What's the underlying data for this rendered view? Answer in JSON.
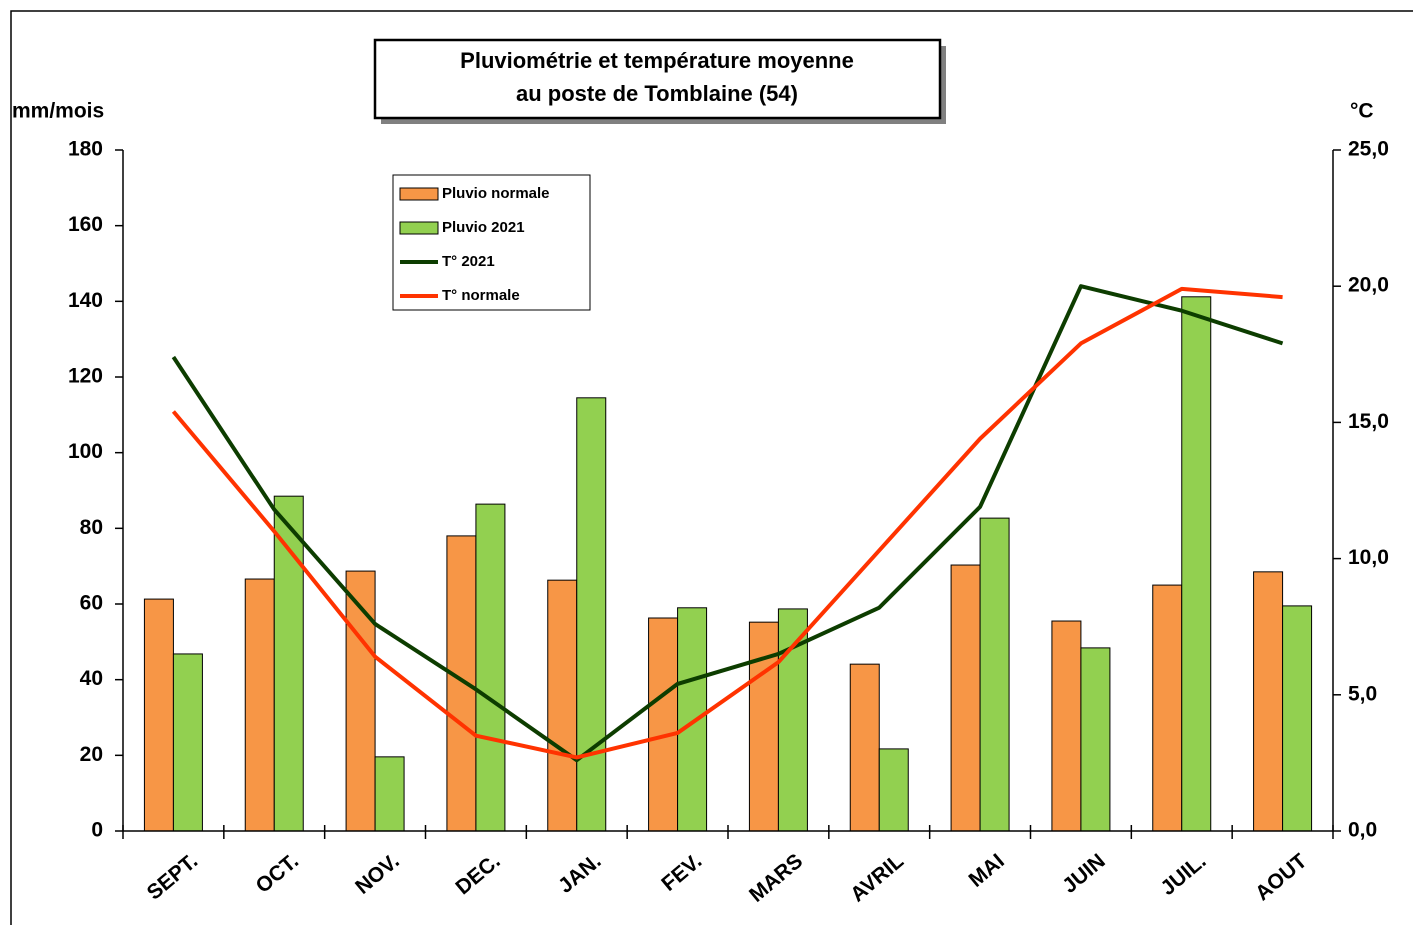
{
  "chart_data": {
    "type": "bar_line",
    "title": [
      "Pluviométrie et température moyenne",
      "au poste de Tomblaine (54)"
    ],
    "y_label": "mm/mois",
    "y2_label": "°C",
    "categories": [
      "SEPT.",
      "OCT.",
      "NOV.",
      "DEC.",
      "JAN.",
      "FEV.",
      "MARS",
      "AVRIL",
      "MAI",
      "JUIN",
      "JUIL.",
      "AOUT"
    ],
    "series": [
      {
        "name": "Pluvio normale",
        "kind": "bar",
        "color": "#f79646",
        "values": [
          61.3,
          66.6,
          68.7,
          78,
          66.3,
          56.3,
          55.2,
          44.1,
          70.3,
          55.5,
          65,
          68.5
        ]
      },
      {
        "name": "Pluvio 2021",
        "kind": "bar",
        "color": "#92d050",
        "values": [
          46.8,
          88.5,
          19.6,
          86.4,
          114.5,
          59,
          58.7,
          21.7,
          82.7,
          48.4,
          141.2,
          59.5
        ]
      },
      {
        "name": "T° 2021",
        "kind": "line",
        "axis": "y2",
        "color": "#0d3d00",
        "values": [
          17.4,
          11.8,
          7.6,
          5.2,
          2.6,
          5.4,
          6.5,
          8.2,
          11.9,
          20.0,
          19.1,
          17.9
        ]
      },
      {
        "name": "T° normale",
        "kind": "line",
        "axis": "y2",
        "color": "#ff3300",
        "values": [
          15.4,
          11.0,
          6.4,
          3.5,
          2.7,
          3.6,
          6.2,
          10.3,
          14.4,
          17.9,
          19.9,
          19.6
        ]
      }
    ],
    "ylim": [
      0,
      180
    ],
    "yticks": [
      0,
      20,
      40,
      60,
      80,
      100,
      120,
      140,
      160,
      180
    ],
    "y2lim": [
      0,
      25
    ],
    "y2ticks": [
      {
        "value": 0,
        "label": "0,0"
      },
      {
        "value": 5,
        "label": "5,0"
      },
      {
        "value": 10,
        "label": "10,0"
      },
      {
        "value": 15,
        "label": "15,0"
      },
      {
        "value": 20,
        "label": "20,0"
      },
      {
        "value": 25,
        "label": "25,0"
      }
    ]
  }
}
